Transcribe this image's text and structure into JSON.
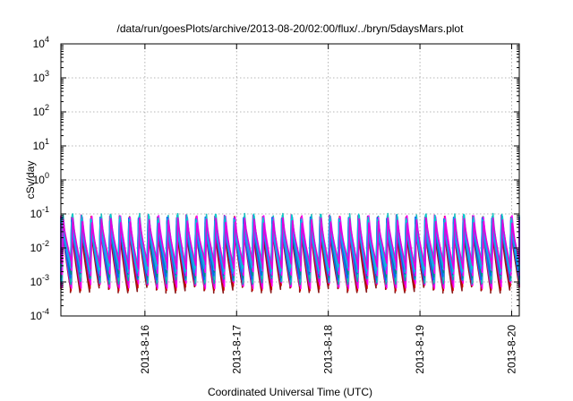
{
  "chart_data": {
    "type": "line",
    "title": "/data/run/goesPlots/archive/2013-08-20/02:00/flux/../bryn/5daysMars.plot",
    "xlabel": "Coordinated Universal Time (UTC)",
    "ylabel": "cSv/day",
    "yscale": "log",
    "ylim": [
      0.0001,
      10000
    ],
    "y_ticks": [
      {
        "value": 0.0001,
        "base": "10",
        "exp": "-4"
      },
      {
        "value": 0.001,
        "base": "10",
        "exp": "-3"
      },
      {
        "value": 0.01,
        "base": "10",
        "exp": "-2"
      },
      {
        "value": 0.1,
        "base": "10",
        "exp": "-1"
      },
      {
        "value": 1,
        "base": "10",
        "exp": "0"
      },
      {
        "value": 10,
        "base": "10",
        "exp": "1"
      },
      {
        "value": 100,
        "base": "10",
        "exp": "2"
      },
      {
        "value": 1000,
        "base": "10",
        "exp": "3"
      },
      {
        "value": 10000,
        "base": "10",
        "exp": "4"
      }
    ],
    "xlim": [
      "2013-08-15T02:00",
      "2013-08-20T02:00"
    ],
    "x_ticks": [
      {
        "value": "2013-08-16T00:00",
        "label": "2013-8-16"
      },
      {
        "value": "2013-08-17T00:00",
        "label": "2013-8-17"
      },
      {
        "value": "2013-08-18T00:00",
        "label": "2013-8-18"
      },
      {
        "value": "2013-08-19T00:00",
        "label": "2013-8-19"
      },
      {
        "value": "2013-08-20T00:00",
        "label": "2013-8-20"
      }
    ],
    "grid": true,
    "legend": "none",
    "pattern": {
      "period_hours": 2.5,
      "peak_range": [
        0.05,
        0.09
      ],
      "trough_range": [
        0.0006,
        0.003
      ]
    },
    "series_colors": [
      "#8b1a1a",
      "#d00000",
      "#ff00ff",
      "#cc00cc",
      "#00aaaa",
      "#20c0c0",
      "#0060ff",
      "#008b8b",
      "#ff00ff",
      "#1e90ff",
      "#00cccc",
      "#e000e0"
    ]
  }
}
